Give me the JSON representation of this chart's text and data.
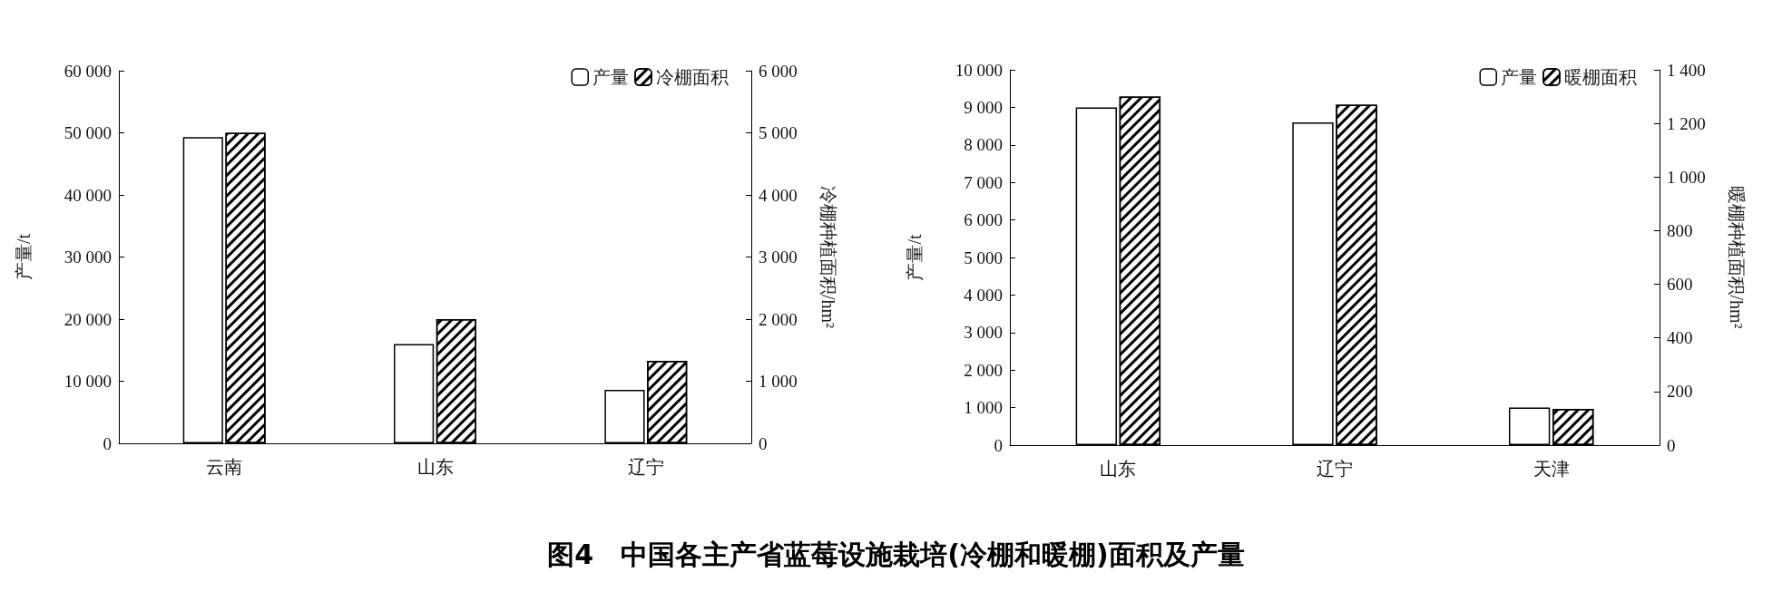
{
  "chart_data": [
    {
      "type": "bar",
      "annotations": [
        "图4　中国各主产省蓝莓设施栽培(冷棚和暖棚)面积及产量"
      ],
      "categories": [
        "云南",
        "山东",
        "辽宁"
      ],
      "ylabel": "产量/t",
      "y2label": "冷棚种植面积/hm²",
      "legend": "top right",
      "series": [
        {
          "name": "产量",
          "color": "#ffffff",
          "values": [
            49300,
            16000,
            8600
          ]
        },
        {
          "name": "冷棚面积",
          "color": "#000000",
          "axis": "y2",
          "values": [
            5000,
            2000,
            1330
          ]
        }
      ],
      "ylim": [
        0,
        60000
      ],
      "yticks": [
        0,
        {
          "value": 10000,
          "label": "10 000"
        },
        {
          "value": 20000,
          "label": "20 000"
        },
        {
          "value": 30000,
          "label": "30 000"
        },
        {
          "value": 40000,
          "label": "40 000"
        },
        {
          "value": 50000,
          "label": "50 000"
        },
        {
          "value": 60000,
          "label": "60 000"
        }
      ],
      "y2lim": [
        0,
        6000
      ],
      "y2ticks": [
        0,
        {
          "value": 1000,
          "label": "1 000"
        },
        {
          "value": 2000,
          "label": "2 000"
        },
        {
          "value": 3000,
          "label": "3 000"
        },
        {
          "value": 4000,
          "label": "4 000"
        },
        {
          "value": 5000,
          "label": "5 000"
        },
        {
          "value": 6000,
          "label": "6 000"
        }
      ]
    },
    {
      "type": "bar",
      "categories": [
        "山东",
        "辽宁",
        "天津"
      ],
      "ylabel": "产量/t",
      "y2label": "暖棚种植面积/hm²",
      "legend": "top right",
      "series": [
        {
          "name": "产量",
          "color": "#ffffff",
          "values": [
            9000,
            8600,
            1000
          ]
        },
        {
          "name": "暖棚面积",
          "color": "#000000",
          "axis": "y2",
          "values": [
            1300,
            1270,
            135
          ]
        }
      ],
      "ylim": [
        0,
        10000
      ],
      "yticks": [
        0,
        {
          "value": 1000,
          "label": "1 000"
        },
        {
          "value": 2000,
          "label": "2 000"
        },
        {
          "value": 3000,
          "label": "3 000"
        },
        {
          "value": 4000,
          "label": "4 000"
        },
        {
          "value": 5000,
          "label": "5 000"
        },
        {
          "value": 6000,
          "label": "6 000"
        },
        {
          "value": 7000,
          "label": "7 000"
        },
        {
          "value": 8000,
          "label": "8 000"
        },
        {
          "value": 9000,
          "label": "9 000"
        },
        {
          "value": 10000,
          "label": "10 000"
        }
      ],
      "y2lim": [
        0,
        1400
      ],
      "y2ticks": [
        0,
        200,
        400,
        600,
        800,
        {
          "value": 1000,
          "label": "1 000"
        },
        {
          "value": 1200,
          "label": "1 200"
        },
        {
          "value": 1400,
          "label": "1 400"
        }
      ]
    }
  ]
}
